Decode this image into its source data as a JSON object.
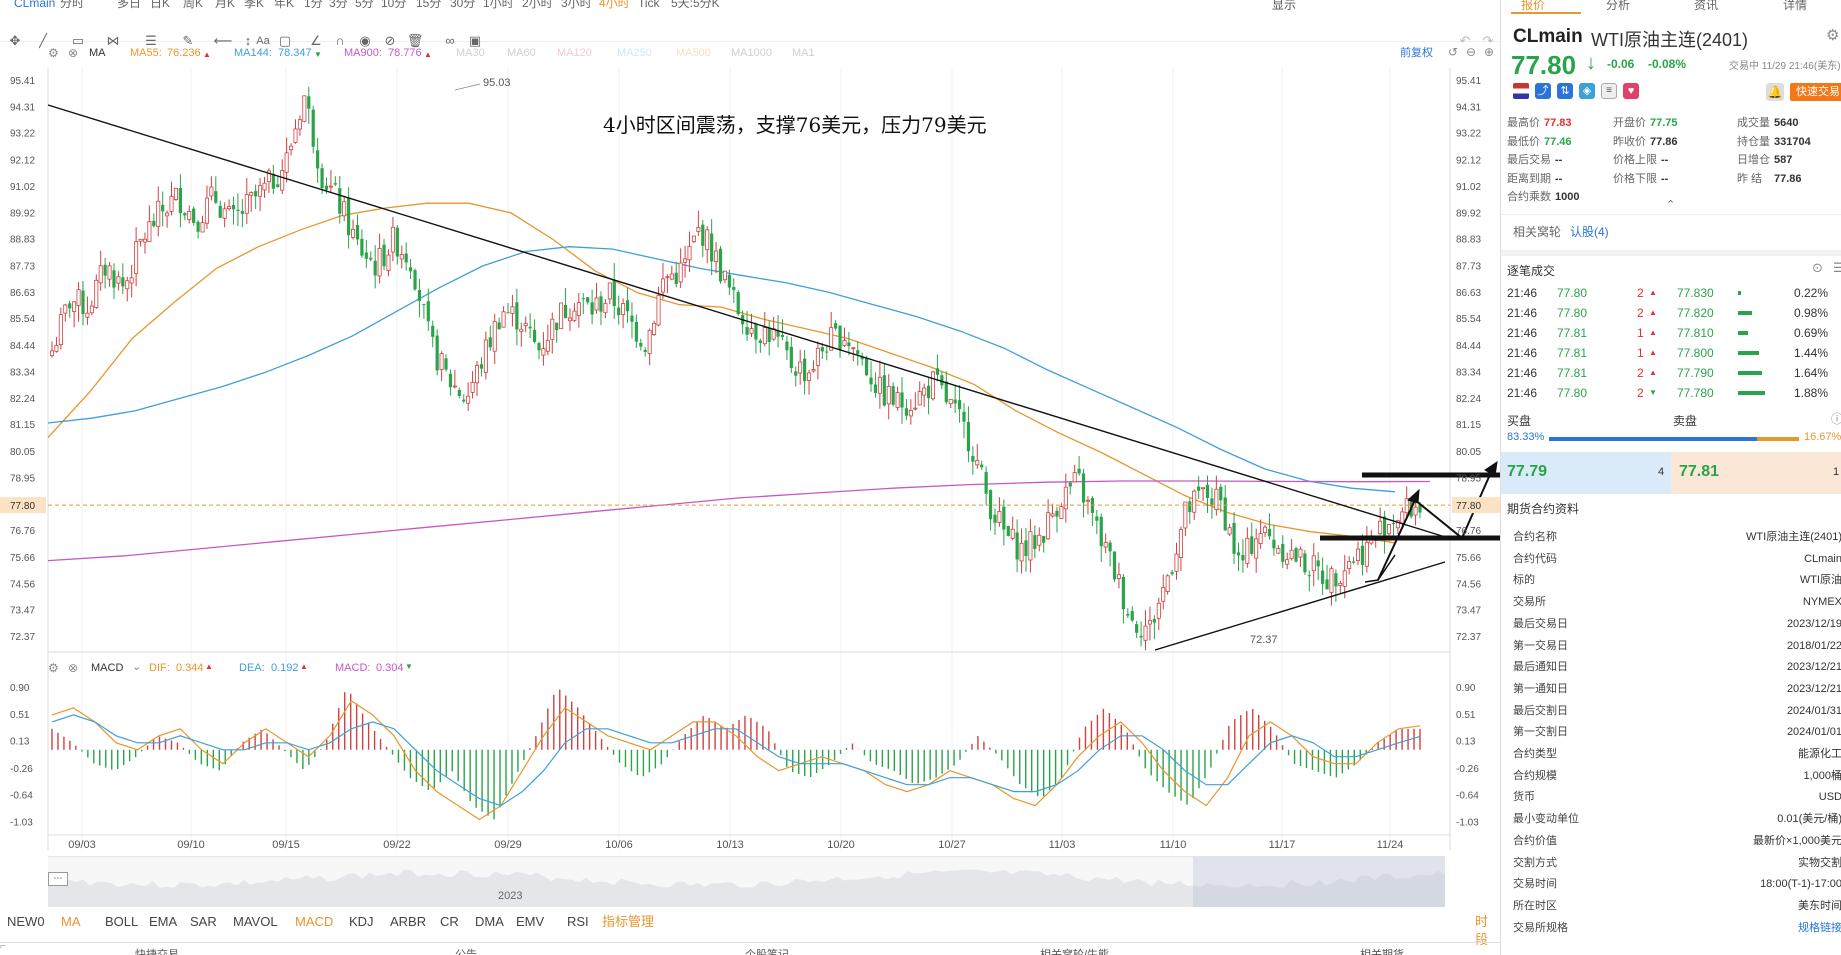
{
  "header": {
    "symbol": "CLmain",
    "periods": [
      "分时",
      "多日",
      "日K",
      "周K",
      "月K",
      "季K",
      "年K",
      "1分",
      "3分",
      "5分",
      "10分",
      "15分",
      "30分",
      "1小时",
      "2小时",
      "3小时",
      "4小时",
      "Tick",
      "5天:5分K"
    ],
    "active_period": "4小时",
    "display_menu": "显示"
  },
  "ma_bar": {
    "name": "MA",
    "items": [
      {
        "label": "MA55:",
        "value": "76.236",
        "arrow": "▲",
        "color": "#e8962e"
      },
      {
        "label": "MA144:",
        "value": "78.347",
        "arrow": "▼",
        "color": "#3ea0d8"
      },
      {
        "label": "MA900:",
        "value": "78.776",
        "arrow": "▲",
        "color": "#c658c6"
      },
      {
        "label": "MA30",
        "value": "",
        "arrow": "",
        "color": "#cfcfcf"
      },
      {
        "label": "MA60",
        "value": "",
        "arrow": "",
        "color": "#cfcfcf"
      },
      {
        "label": "MA120",
        "value": "",
        "arrow": "",
        "color": "#f3c8d8"
      },
      {
        "label": "MA250",
        "value": "",
        "arrow": "",
        "color": "#cde8f5"
      },
      {
        "label": "MA500",
        "value": "",
        "arrow": "",
        "color": "#f5e0c0"
      },
      {
        "label": "MA1000",
        "value": "",
        "arrow": "",
        "color": "#cfcfcf"
      },
      {
        "label": "MA1",
        "value": "",
        "arrow": "",
        "color": "#cfcfcf"
      }
    ],
    "adjust": "前复权"
  },
  "annotation": "4小时区间震荡，支撑76美元，压力79美元",
  "price_axis": [
    "95.41",
    "94.31",
    "93.22",
    "92.12",
    "91.02",
    "89.92",
    "88.83",
    "87.73",
    "86.63",
    "85.54",
    "84.44",
    "83.34",
    "82.24",
    "81.15",
    "80.05",
    "78.95",
    "77.80",
    "76.76",
    "75.66",
    "74.56",
    "73.47",
    "72.37"
  ],
  "current_price_tag": "77.80",
  "high_label": "95.03",
  "low_label": "72.37",
  "macd_bar": {
    "name": "MACD",
    "dif_label": "DIF:",
    "dif": "0.344",
    "dif_arrow": "▲",
    "dea_label": "DEA:",
    "dea": "0.192",
    "dea_arrow": "▲",
    "macd_label": "MACD:",
    "macd": "0.304",
    "macd_arrow": "▼"
  },
  "macd_axis": [
    "0.90",
    "0.51",
    "0.13",
    "-0.26",
    "-0.64",
    "-1.03"
  ],
  "date_axis": [
    "09/03",
    "09/10",
    "09/15",
    "09/22",
    "09/29",
    "10/06",
    "10/13",
    "10/20",
    "10/27",
    "11/03",
    "11/10",
    "11/17",
    "11/24"
  ],
  "navigator_year": "2023",
  "indicators": [
    "NEW0",
    "MA",
    "BOLL",
    "EMA",
    "SAR",
    "MAVOL",
    "MACD",
    "KDJ",
    "ARBR",
    "CR",
    "DMA",
    "EMV",
    "RSI",
    "指标管理"
  ],
  "indicator_active": [
    "MA",
    "MACD"
  ],
  "time_sharing": "时段",
  "footer_tabs": [
    "快捷交易",
    "公告",
    "个股笔记",
    "相关窝轮/牛熊",
    "相关期货"
  ],
  "right": {
    "tabs": [
      "报价",
      "分析",
      "资讯",
      "详情"
    ],
    "symbol": "CLmain",
    "name": "WTI原油主连(2401)",
    "price": "77.80",
    "change": "-0.06",
    "change_pct": "-0.08%",
    "status": "交易中 11/29 21:46(美东)",
    "quick_trade": "快速交易",
    "stats": [
      {
        "k": "最高价",
        "v": "77.83",
        "c": "#e03030"
      },
      {
        "k": "开盘价",
        "v": "77.75",
        "c": "#2aa44a"
      },
      {
        "k": "成交量",
        "v": "5640",
        "c": "#333"
      },
      {
        "k": "最低价",
        "v": "77.46",
        "c": "#2aa44a"
      },
      {
        "k": "昨收价",
        "v": "77.86",
        "c": "#333"
      },
      {
        "k": "持仓量",
        "v": "331704",
        "c": "#333"
      },
      {
        "k": "最后交易",
        "v": "--",
        "c": "#333"
      },
      {
        "k": "价格上限",
        "v": "--",
        "c": "#333"
      },
      {
        "k": "日增仓",
        "v": "587",
        "c": "#333"
      },
      {
        "k": "距离到期",
        "v": "--",
        "c": "#333"
      },
      {
        "k": "价格下限",
        "v": "--",
        "c": "#333"
      },
      {
        "k": "昨 结",
        "v": "77.86",
        "c": "#333"
      },
      {
        "k": "合约乘数",
        "v": "1000",
        "c": "#333"
      }
    ],
    "related_label": "相关窝轮",
    "related_link": "认股(4)",
    "ticks_title": "逐笔成交",
    "ticks": [
      {
        "t": "21:46",
        "p": "77.80",
        "pc": "#2aa44a",
        "q": "2",
        "dir": "▲",
        "dc": "#e03030",
        "bp": "77.830",
        "pct": "0.22%",
        "w": 0.12
      },
      {
        "t": "21:46",
        "p": "77.80",
        "pc": "#2aa44a",
        "q": "2",
        "dir": "▲",
        "dc": "#e03030",
        "bp": "77.820",
        "pct": "0.98%",
        "w": 0.5
      },
      {
        "t": "21:46",
        "p": "77.81",
        "pc": "#2aa44a",
        "q": "1",
        "dir": "▲",
        "dc": "#e03030",
        "bp": "77.810",
        "pct": "0.69%",
        "w": 0.35
      },
      {
        "t": "21:46",
        "p": "77.81",
        "pc": "#2aa44a",
        "q": "1",
        "dir": "▲",
        "dc": "#e03030",
        "bp": "77.800",
        "pct": "1.44%",
        "w": 0.74
      },
      {
        "t": "21:46",
        "p": "77.81",
        "pc": "#2aa44a",
        "q": "2",
        "dir": "▲",
        "dc": "#e03030",
        "bp": "77.790",
        "pct": "1.64%",
        "w": 0.84
      },
      {
        "t": "21:46",
        "p": "77.80",
        "pc": "#2aa44a",
        "q": "2",
        "dir": "▼",
        "dc": "#2aa44a",
        "bp": "77.780",
        "pct": "1.88%",
        "w": 0.96
      }
    ],
    "buy_label": "买盘",
    "sell_label": "卖盘",
    "buy_pct": "83.33%",
    "sell_pct": "16.67%",
    "buy_ratio": 0.8333,
    "bid": "77.79",
    "bid_qty": "4",
    "ask": "77.81",
    "ask_qty": "1",
    "contract_title": "期货合约资料",
    "contract": [
      {
        "k": "合约名称",
        "v": "WTI原油主连(2401)"
      },
      {
        "k": "合约代码",
        "v": "CLmain"
      },
      {
        "k": "标的",
        "v": "WTI原油"
      },
      {
        "k": "交易所",
        "v": "NYMEX"
      },
      {
        "k": "最后交易日",
        "v": "2023/12/19"
      },
      {
        "k": "第一交易日",
        "v": "2018/01/22"
      },
      {
        "k": "最后通知日",
        "v": "2023/12/21"
      },
      {
        "k": "第一通知日",
        "v": "2023/12/21"
      },
      {
        "k": "最后交割日",
        "v": "2024/01/31"
      },
      {
        "k": "第一交割日",
        "v": "2024/01/01"
      },
      {
        "k": "合约类型",
        "v": "能源化工"
      },
      {
        "k": "合约规模",
        "v": "1,000桶"
      },
      {
        "k": "货币",
        "v": "USD"
      },
      {
        "k": "最小变动单位",
        "v": "0.01(美元/桶)"
      },
      {
        "k": "合约价值",
        "v": "最新价×1,000美元"
      },
      {
        "k": "交割方式",
        "v": "实物交割"
      },
      {
        "k": "交易时间",
        "v": "18:00(T-1)-17:00"
      },
      {
        "k": "所在时区",
        "v": "美东时间"
      },
      {
        "k": "交易所规格",
        "v": "规格链接"
      }
    ]
  },
  "chart_data": [
    {
      "type": "candlestick",
      "title": "4小时区间震荡，支撑76美元，压力79美元",
      "x_ticks": [
        "09/03",
        "09/10",
        "09/15",
        "09/22",
        "09/29",
        "10/06",
        "10/13",
        "10/20",
        "10/27",
        "11/03",
        "11/10",
        "11/17",
        "11/24"
      ],
      "ylim": [
        71.8,
        95.9
      ],
      "y_ticks": [
        95.41,
        94.31,
        93.22,
        92.12,
        91.02,
        89.92,
        88.83,
        87.73,
        86.63,
        85.54,
        84.44,
        83.34,
        82.24,
        81.15,
        80.05,
        78.95,
        77.8,
        76.76,
        75.66,
        74.56,
        73.47,
        72.37
      ],
      "close_path": [
        84.2,
        86.3,
        86.0,
        87.7,
        86.8,
        88.8,
        89.9,
        90.6,
        89.6,
        90.6,
        89.5,
        90.3,
        91.0,
        92.0,
        94.8,
        91.5,
        90.2,
        88.5,
        87.7,
        88.8,
        87.9,
        84.5,
        83.0,
        82.2,
        84.0,
        85.9,
        85.5,
        84.2,
        85.5,
        86.3,
        85.9,
        86.5,
        85.5,
        84.5,
        87.2,
        87.5,
        89.3,
        87.8,
        86.0,
        85.1,
        84.9,
        83.7,
        83.3,
        84.5,
        84.9,
        83.8,
        82.5,
        82.0,
        82.2,
        82.9,
        81.8,
        80.5,
        78.0,
        76.5,
        75.9,
        76.6,
        78.1,
        78.8,
        76.9,
        75.1,
        73.0,
        72.7,
        74.9,
        77.5,
        78.3,
        77.8,
        75.2,
        76.8,
        76.2,
        75.7,
        75.2,
        74.7,
        75.5,
        76.0,
        77.0,
        77.5,
        77.8
      ],
      "high_label": 95.03,
      "low_label": 72.37,
      "series": [
        {
          "name": "MA55",
          "values": [
            80.6,
            82.5,
            84.7,
            86.2,
            87.6,
            88.5,
            89.2,
            89.8,
            90.1,
            90.3,
            90.3,
            89.9,
            88.8,
            87.5,
            86.6,
            86.1,
            86.0,
            85.5,
            85.1,
            84.7,
            84.1,
            83.5,
            82.8,
            81.7,
            80.8,
            80.0,
            79.1,
            78.2,
            77.5,
            77.0,
            76.7,
            76.5,
            76.24
          ],
          "color": "#e8962e"
        },
        {
          "name": "MA144",
          "values": [
            81.2,
            81.4,
            81.7,
            82.2,
            82.7,
            83.3,
            84.0,
            84.8,
            85.8,
            86.8,
            87.7,
            88.3,
            88.5,
            88.4,
            88.0,
            87.6,
            87.3,
            87.0,
            86.6,
            86.1,
            85.6,
            85.0,
            84.3,
            83.4,
            82.6,
            81.8,
            81.0,
            80.1,
            79.3,
            78.8,
            78.5,
            78.35
          ],
          "color": "#3ea0d8"
        },
        {
          "name": "MA900",
          "values": [
            75.5,
            75.7,
            76.0,
            76.3,
            76.6,
            76.9,
            77.2,
            77.5,
            77.8,
            78.1,
            78.3,
            78.5,
            78.65,
            78.75,
            78.8,
            78.8,
            78.78,
            78.77,
            78.776
          ],
          "color": "#c658c6"
        }
      ]
    },
    {
      "type": "bar",
      "title": "MACD",
      "ylim": [
        -1.15,
        1.0
      ],
      "y_ticks": [
        0.9,
        0.51,
        0.13,
        -0.26,
        -0.64,
        -1.03
      ],
      "series": [
        {
          "name": "MACD",
          "hist_path": [
            0.3,
            0.1,
            -0.2,
            -0.3,
            -0.1,
            0.2,
            0.1,
            -0.2,
            -0.3,
            0.1,
            0.3,
            0.0,
            -0.3,
            0.1,
            0.9,
            0.4,
            0.0,
            -0.4,
            -0.6,
            -0.3,
            -0.8,
            -1.0,
            -0.4,
            0.2,
            0.9,
            0.6,
            0.2,
            -0.2,
            -0.4,
            -0.2,
            0.2,
            0.5,
            0.3,
            0.5,
            0.3,
            -0.3,
            -0.4,
            -0.2,
            0.1,
            -0.2,
            -0.3,
            -0.5,
            -0.4,
            -0.2,
            0.2,
            -0.1,
            -0.5,
            -0.7,
            -0.4,
            0.3,
            0.6,
            0.3,
            -0.3,
            -0.6,
            -0.8,
            -0.3,
            0.4,
            0.6,
            0.3,
            -0.2,
            -0.3,
            -0.4,
            -0.2,
            0.1,
            0.3,
            0.3
          ],
          "up_color": "#d04040",
          "down_color": "#2aa44a"
        },
        {
          "name": "DIF",
          "values": [
            0.5,
            0.6,
            0.4,
            0.1,
            0.0,
            0.2,
            0.3,
            0.0,
            -0.2,
            0.1,
            0.3,
            0.1,
            -0.1,
            0.2,
            0.7,
            0.5,
            0.2,
            -0.3,
            -0.6,
            -0.8,
            -1.0,
            -0.8,
            -0.3,
            0.2,
            0.6,
            0.4,
            0.2,
            0.1,
            0.0,
            0.2,
            0.4,
            0.4,
            0.2,
            -0.1,
            -0.3,
            -0.2,
            -0.1,
            -0.2,
            -0.3,
            -0.5,
            -0.6,
            -0.5,
            -0.3,
            -0.4,
            -0.5,
            -0.7,
            -0.8,
            -0.5,
            -0.1,
            0.2,
            0.4,
            0.1,
            -0.3,
            -0.6,
            -0.8,
            -0.4,
            0.2,
            0.4,
            0.2,
            -0.1,
            -0.2,
            -0.2,
            0.1,
            0.3,
            0.344
          ],
          "color": "#e8962e"
        },
        {
          "name": "DEA",
          "values": [
            0.4,
            0.5,
            0.4,
            0.2,
            0.1,
            0.1,
            0.2,
            0.1,
            0.0,
            0.0,
            0.1,
            0.1,
            0.0,
            0.1,
            0.3,
            0.4,
            0.3,
            0.0,
            -0.3,
            -0.5,
            -0.7,
            -0.8,
            -0.6,
            -0.3,
            0.1,
            0.3,
            0.3,
            0.2,
            0.1,
            0.1,
            0.2,
            0.3,
            0.3,
            0.1,
            -0.1,
            -0.2,
            -0.2,
            -0.2,
            -0.3,
            -0.4,
            -0.5,
            -0.5,
            -0.4,
            -0.4,
            -0.5,
            -0.6,
            -0.6,
            -0.5,
            -0.3,
            0.0,
            0.2,
            0.2,
            0.0,
            -0.3,
            -0.5,
            -0.5,
            -0.2,
            0.1,
            0.2,
            0.1,
            -0.1,
            -0.1,
            0.0,
            0.1,
            0.192
          ],
          "color": "#3ea0d8"
        }
      ]
    }
  ]
}
